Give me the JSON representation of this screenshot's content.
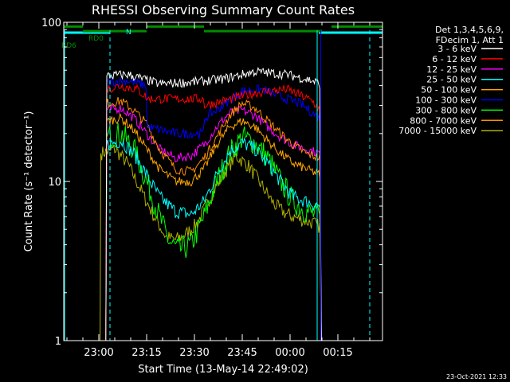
{
  "chart_data": {
    "type": "line",
    "title": "RHESSI Observing Summary Count Rates",
    "xlabel": "Start Time (13-May-14 22:49:02)",
    "ylabel": "Count Rate (s⁻¹ detector⁻¹)",
    "yscale": "log",
    "ylim": [
      1,
      100
    ],
    "xlim_minutes": [
      0,
      100
    ],
    "x_ticks": [
      {
        "label": "23:00",
        "min": 11
      },
      {
        "label": "23:15",
        "min": 26
      },
      {
        "label": "23:30",
        "min": 41
      },
      {
        "label": "23:45",
        "min": 56
      },
      {
        "label": "00:00",
        "min": 71
      },
      {
        "label": "00:15",
        "min": 86
      }
    ],
    "y_ticks": [
      {
        "label": "100",
        "value": 100
      },
      {
        "label": "10",
        "value": 10
      },
      {
        "label": "1",
        "value": 1
      }
    ],
    "legend_header": [
      "Det 1,3,4,5,6,9,",
      "FDecim 1, Att 1"
    ],
    "legend_position": "right",
    "series": [
      {
        "name": "3 - 6 keV",
        "color": "#ffffff",
        "points": [
          [
            13.2,
            1
          ],
          [
            13.5,
            46
          ],
          [
            20,
            47
          ],
          [
            30,
            41
          ],
          [
            40,
            42
          ],
          [
            50,
            44
          ],
          [
            60,
            49
          ],
          [
            70,
            47
          ],
          [
            78,
            43
          ],
          [
            80.3,
            41
          ],
          [
            80.8,
            1
          ]
        ]
      },
      {
        "name": "6 - 12 keV",
        "color": "#ff0000",
        "points": [
          [
            13.2,
            1
          ],
          [
            13.5,
            38
          ],
          [
            18,
            40
          ],
          [
            23,
            38
          ],
          [
            25.8,
            34
          ],
          [
            26.2,
            33
          ],
          [
            35,
            33
          ],
          [
            43.8,
            33
          ],
          [
            44.2,
            30
          ],
          [
            50,
            32
          ],
          [
            60,
            36
          ],
          [
            70,
            38
          ],
          [
            78,
            32
          ],
          [
            80.3,
            28
          ],
          [
            80.8,
            1
          ]
        ]
      },
      {
        "name": "12 - 25 keV",
        "color": "#ff00ff",
        "points": [
          [
            13.2,
            1
          ],
          [
            13.5,
            28
          ],
          [
            18,
            29
          ],
          [
            22,
            25
          ],
          [
            26,
            20
          ],
          [
            30,
            16
          ],
          [
            35,
            14
          ],
          [
            40,
            14.5
          ],
          [
            44,
            17
          ],
          [
            48,
            22
          ],
          [
            52,
            27
          ],
          [
            56,
            28
          ],
          [
            60,
            26
          ],
          [
            64,
            22
          ],
          [
            68,
            19
          ],
          [
            72,
            17
          ],
          [
            76,
            16
          ],
          [
            80.3,
            15
          ],
          [
            80.8,
            1
          ]
        ]
      },
      {
        "name": "25 - 50 keV",
        "color": "#00ffff",
        "points": [
          [
            13.2,
            1
          ],
          [
            13.5,
            17
          ],
          [
            18,
            18
          ],
          [
            22,
            15
          ],
          [
            26,
            11
          ],
          [
            30,
            8
          ],
          [
            35,
            6.5
          ],
          [
            40,
            6.2
          ],
          [
            44,
            7.5
          ],
          [
            48,
            11
          ],
          [
            52,
            15.5
          ],
          [
            56,
            17.5
          ],
          [
            60,
            16
          ],
          [
            64,
            13
          ],
          [
            68,
            10
          ],
          [
            72,
            8
          ],
          [
            76,
            7.5
          ],
          [
            80.3,
            7
          ],
          [
            80.8,
            1
          ]
        ]
      },
      {
        "name": "50 - 100 keV",
        "color": "#ffa500",
        "points": [
          [
            13.2,
            1
          ],
          [
            13.5,
            24
          ],
          [
            18,
            25
          ],
          [
            22,
            21
          ],
          [
            26,
            16
          ],
          [
            30,
            12
          ],
          [
            35,
            10
          ],
          [
            40,
            10
          ],
          [
            44,
            12
          ],
          [
            48,
            17
          ],
          [
            52,
            22
          ],
          [
            56,
            24
          ],
          [
            60,
            22
          ],
          [
            64,
            18
          ],
          [
            68,
            15
          ],
          [
            72,
            13
          ],
          [
            76,
            12
          ],
          [
            80.3,
            11
          ],
          [
            80.8,
            1
          ]
        ]
      },
      {
        "name": "100 - 300 keV",
        "color": "#0000ff",
        "points": [
          [
            13.2,
            1
          ],
          [
            13.5,
            42
          ],
          [
            20,
            43
          ],
          [
            25.8,
            40
          ],
          [
            26.2,
            22
          ],
          [
            35,
            20
          ],
          [
            43.8,
            20
          ],
          [
            44.2,
            25
          ],
          [
            50,
            30
          ],
          [
            56,
            37
          ],
          [
            62,
            38
          ],
          [
            68,
            34
          ],
          [
            74,
            31
          ],
          [
            78,
            27
          ],
          [
            80.3,
            25
          ],
          [
            80.8,
            1
          ]
        ]
      },
      {
        "name": "300 - 800 keV",
        "color": "#00ff00",
        "points": [
          [
            13.2,
            1
          ],
          [
            13.5,
            19
          ],
          [
            18,
            20
          ],
          [
            22,
            16
          ],
          [
            26,
            10
          ],
          [
            30,
            6
          ],
          [
            33,
            4.2
          ],
          [
            36,
            3.7
          ],
          [
            40,
            4
          ],
          [
            44,
            6
          ],
          [
            48,
            10
          ],
          [
            52,
            15
          ],
          [
            56,
            19
          ],
          [
            60,
            17.5
          ],
          [
            64,
            14
          ],
          [
            68,
            10
          ],
          [
            72,
            7.5
          ],
          [
            76,
            6.5
          ],
          [
            80.3,
            6
          ],
          [
            80.8,
            1
          ]
        ]
      },
      {
        "name": "800 - 7000 keV",
        "color": "#ff8c00",
        "points": [
          [
            13.2,
            1
          ],
          [
            13.5,
            31
          ],
          [
            18,
            32
          ],
          [
            22,
            28
          ],
          [
            26,
            23
          ],
          [
            30,
            16
          ],
          [
            35,
            12
          ],
          [
            40,
            11.5
          ],
          [
            44,
            14
          ],
          [
            48,
            19
          ],
          [
            52,
            26
          ],
          [
            56,
            31
          ],
          [
            60,
            29
          ],
          [
            64,
            24
          ],
          [
            68,
            20
          ],
          [
            72,
            17
          ],
          [
            76,
            15
          ],
          [
            80.3,
            14
          ],
          [
            80.8,
            1
          ]
        ]
      },
      {
        "name": "7000 - 15000 keV",
        "color": "#b0b000",
        "points": [
          [
            11.4,
            1
          ],
          [
            11.6,
            15
          ],
          [
            16,
            16
          ],
          [
            20,
            13
          ],
          [
            24,
            9
          ],
          [
            28,
            6.2
          ],
          [
            32,
            4.5
          ],
          [
            35,
            4.3
          ],
          [
            38,
            4.6
          ],
          [
            42,
            5.5
          ],
          [
            46,
            8
          ],
          [
            50,
            11
          ],
          [
            54,
            14.5
          ],
          [
            58,
            12.5
          ],
          [
            62,
            9.5
          ],
          [
            66,
            7.2
          ],
          [
            70,
            6.2
          ],
          [
            74,
            5.8
          ],
          [
            78,
            5.5
          ],
          [
            80.3,
            5.2
          ],
          [
            80.8,
            1
          ]
        ]
      }
    ],
    "flags": [
      {
        "name": "N",
        "color": "#00ffff",
        "value": 100,
        "segments": [
          [
            0,
            14.5
          ],
          [
            80,
            100
          ]
        ]
      },
      {
        "name": "RD0",
        "color": "#008c00",
        "value": 94,
        "segments": [
          [
            0,
            6
          ],
          [
            26,
            44
          ],
          [
            84,
            100
          ]
        ]
      },
      {
        "name": "RD6",
        "color": "#008c00",
        "value": 88,
        "segments": [
          [
            6,
            26
          ],
          [
            44,
            81
          ]
        ]
      }
    ],
    "vlines_dashed": [
      {
        "min": 14.5,
        "color": "#00ffff"
      },
      {
        "min": 96,
        "color": "#00ffff"
      }
    ],
    "vlines_solid": [
      {
        "min": 0,
        "color": "#00ffff"
      },
      {
        "min": 79.5,
        "color": "#00ffff"
      },
      {
        "min": 80.6,
        "color": "#0000ff"
      }
    ],
    "grid": false
  },
  "timestamp": "23-Oct-2021 12:33"
}
